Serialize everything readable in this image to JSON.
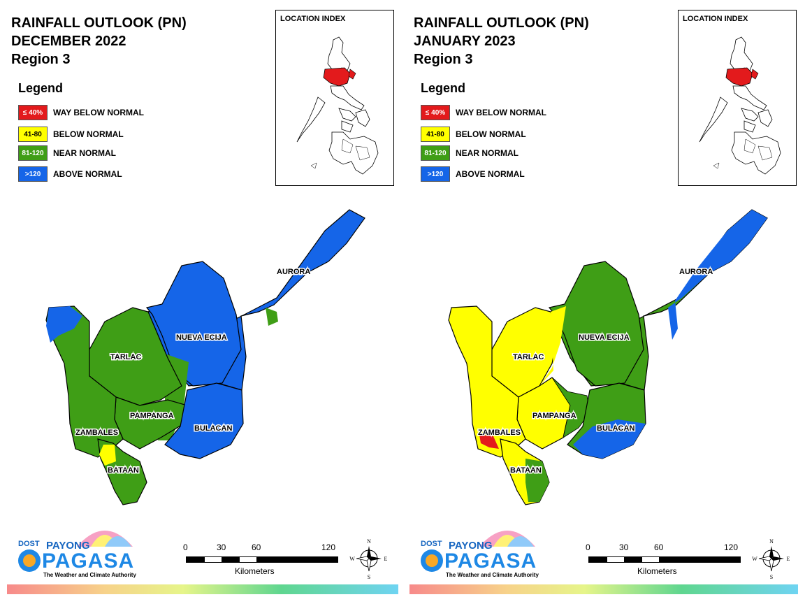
{
  "colors": {
    "way_below": "#e31a1c",
    "below": "#ffff00",
    "near": "#3f9e16",
    "above": "#1565e8",
    "boundary": "#000000"
  },
  "panels": [
    {
      "title_line1": "RAINFALL OUTLOOK (PN)",
      "title_line2": "DECEMBER 2022",
      "title_line3": "Region 3",
      "legend_title": "Legend",
      "legend": [
        {
          "code": "≤ 40%",
          "label": "WAY BELOW NORMAL",
          "category": "way_below"
        },
        {
          "code": "41-80",
          "label": "BELOW NORMAL",
          "category": "below"
        },
        {
          "code": "81-120",
          "label": "NEAR NORMAL",
          "category": "near"
        },
        {
          "code": ">120",
          "label": "ABOVE NORMAL",
          "category": "above"
        }
      ],
      "index_title": "LOCATION INDEX",
      "provinces": [
        {
          "name": "AURORA",
          "category": "above"
        },
        {
          "name": "NUEVA ECIJA",
          "category": "above"
        },
        {
          "name": "TARLAC",
          "category": "near"
        },
        {
          "name": "PAMPANGA",
          "category": "near"
        },
        {
          "name": "BULACAN",
          "category": "above"
        },
        {
          "name": "ZAMBALES",
          "category": "near"
        },
        {
          "name": "BATAAN",
          "category": "near"
        }
      ],
      "scale": {
        "ticks": [
          "0",
          "30",
          "60",
          "120"
        ],
        "unit": "Kilometers"
      },
      "compass": {
        "n": "N",
        "s": "S",
        "e": "E",
        "w": "W"
      },
      "logo": {
        "dost": "DOST",
        "payong": "PAYONG",
        "pagasa": "PAGASA",
        "tagline": "The Weather and Climate Authority"
      }
    },
    {
      "title_line1": "RAINFALL OUTLOOK (PN)",
      "title_line2": "JANUARY 2023",
      "title_line3": "Region 3",
      "legend_title": "Legend",
      "legend": [
        {
          "code": "≤ 40%",
          "label": "WAY BELOW NORMAL",
          "category": "way_below"
        },
        {
          "code": "41-80",
          "label": "BELOW NORMAL",
          "category": "below"
        },
        {
          "code": "81-120",
          "label": "NEAR NORMAL",
          "category": "near"
        },
        {
          "code": ">120",
          "label": "ABOVE NORMAL",
          "category": "above"
        }
      ],
      "index_title": "LOCATION INDEX",
      "provinces": [
        {
          "name": "AURORA",
          "category": "near"
        },
        {
          "name": "NUEVA ECIJA",
          "category": "near"
        },
        {
          "name": "TARLAC",
          "category": "below"
        },
        {
          "name": "PAMPANGA",
          "category": "below"
        },
        {
          "name": "BULACAN",
          "category": "near"
        },
        {
          "name": "ZAMBALES",
          "category": "below"
        },
        {
          "name": "BATAAN",
          "category": "below"
        }
      ],
      "scale": {
        "ticks": [
          "0",
          "30",
          "60",
          "120"
        ],
        "unit": "Kilometers"
      },
      "compass": {
        "n": "N",
        "s": "S",
        "e": "E",
        "w": "W"
      },
      "logo": {
        "dost": "DOST",
        "payong": "PAYONG",
        "pagasa": "PAGASA",
        "tagline": "The Weather and Climate Authority"
      }
    }
  ]
}
